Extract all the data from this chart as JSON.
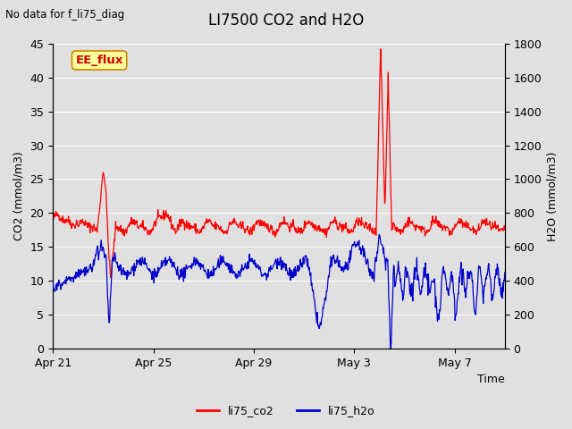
{
  "title": "LI7500 CO2 and H2O",
  "top_left_text": "No data for f_li75_diag",
  "xlabel": "Time",
  "ylabel_left": "CO2 (mmol/m3)",
  "ylabel_right": "H2O (mmol/m3)",
  "ylim_left": [
    0,
    45
  ],
  "ylim_right": [
    0,
    1800
  ],
  "yticks_left": [
    0,
    5,
    10,
    15,
    20,
    25,
    30,
    35,
    40,
    45
  ],
  "yticks_right": [
    0,
    200,
    400,
    600,
    800,
    1000,
    1200,
    1400,
    1600,
    1800
  ],
  "xtick_positions": [
    0,
    4,
    8,
    12,
    16
  ],
  "xtick_labels": [
    "Apr 21",
    "Apr 25",
    "Apr 29",
    "May 3",
    "May 7"
  ],
  "xmax": 18,
  "bg_color": "#e0e0e0",
  "plot_bg_color": "#e0e0e0",
  "grid_color": "#ffffff",
  "co2_color": "#ff0000",
  "h2o_color": "#0000cc",
  "annotation_box_text": "EE_flux",
  "annotation_box_bg": "#ffff99",
  "annotation_box_edge": "#cc8800",
  "annotation_box_text_color": "#cc0000",
  "legend_co2_label": "li75_co2",
  "legend_h2o_label": "li75_h2o",
  "seed": 42,
  "n_points": 900
}
